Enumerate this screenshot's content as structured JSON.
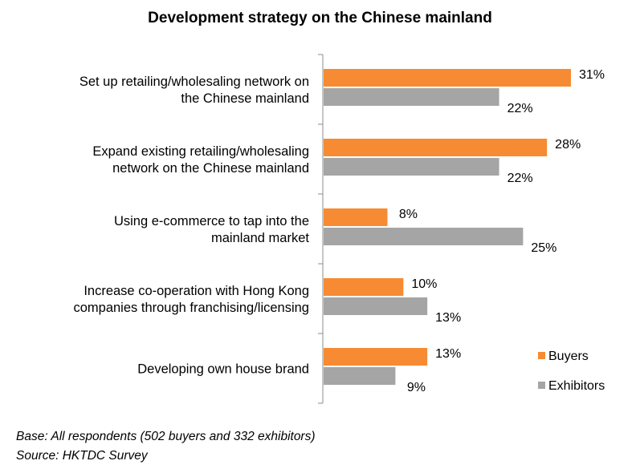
{
  "chart_data": {
    "type": "bar",
    "orientation": "horizontal",
    "title": "Development strategy on the Chinese mainland",
    "categories": [
      [
        "Set up retailing/wholesaling network on",
        "the Chinese mainland"
      ],
      [
        "Expand existing retailing/wholesaling",
        "network on the Chinese mainland"
      ],
      [
        "Using e-commerce to tap into the",
        "mainland market"
      ],
      [
        "Increase co-operation with Hong Kong",
        "companies through franchising/licensing"
      ],
      [
        "Developing own house brand"
      ]
    ],
    "series": [
      {
        "name": "Buyers",
        "color": "#F68B33",
        "values": [
          31,
          28,
          8,
          10,
          13
        ]
      },
      {
        "name": "Exhibitors",
        "color": "#A5A5A5",
        "values": [
          22,
          22,
          25,
          13,
          9
        ]
      }
    ],
    "value_suffix": "%",
    "xlim": [
      0,
      35
    ],
    "grid": false,
    "legend_position": "right",
    "notes": [
      "Base: All respondents (502 buyers and 332 exhibitors)",
      "Source: HKTDC Survey"
    ]
  }
}
